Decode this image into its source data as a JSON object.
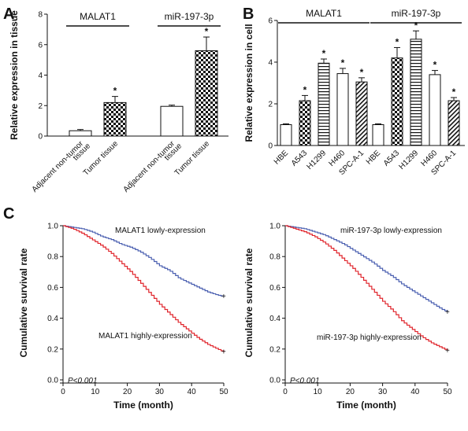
{
  "panel_letters": [
    "A",
    "B",
    "C"
  ],
  "colors": {
    "low": "#4a5fb0",
    "high": "#e0252c",
    "ink": "#111111"
  },
  "chart_data": [
    {
      "id": "A",
      "type": "bar",
      "ylabel": "Relative expression in tissue",
      "ylim": [
        0,
        8
      ],
      "yticks": [
        0,
        2,
        4,
        6,
        8
      ],
      "groups": [
        {
          "name": "MALAT1",
          "categories": [
            "Adjacent non-tumor tissue",
            "Tumor tissue"
          ],
          "category_lines": [
            [
              "Adjacent non-tumor",
              "tissue"
            ],
            [
              "Tumor tissue"
            ]
          ],
          "values": [
            0.35,
            2.2
          ],
          "errors": [
            0.08,
            0.4
          ],
          "fills": [
            "white",
            "checker"
          ],
          "significant": [
            false,
            true
          ]
        },
        {
          "name": "miR-197-3p",
          "categories": [
            "Adjacent non-tumor tissue",
            "Tumor tissue"
          ],
          "category_lines": [
            [
              "Adjacent non-tumor",
              "tissue"
            ],
            [
              "Tumor tissue"
            ]
          ],
          "values": [
            1.95,
            5.6
          ],
          "errors": [
            0.08,
            0.9
          ],
          "fills": [
            "white",
            "checker"
          ],
          "significant": [
            false,
            true
          ]
        }
      ],
      "star": "*"
    },
    {
      "id": "B",
      "type": "bar",
      "ylabel": "Relative expression in cell",
      "ylim": [
        0,
        6
      ],
      "yticks": [
        0,
        2,
        4,
        6
      ],
      "groups": [
        {
          "name": "MALAT1",
          "categories": [
            "HBE",
            "A543",
            "H1299",
            "H460",
            "SPC-A-1"
          ],
          "values": [
            1.0,
            2.15,
            3.95,
            3.45,
            3.05
          ],
          "errors": [
            0.04,
            0.25,
            0.2,
            0.25,
            0.2
          ],
          "fills": [
            "white",
            "checker",
            "hstripe",
            "white",
            "diag"
          ],
          "significant": [
            false,
            true,
            true,
            true,
            true
          ]
        },
        {
          "name": "miR-197-3p",
          "categories": [
            "HBE",
            "A543",
            "H1299",
            "H460",
            "SPC-A-1"
          ],
          "values": [
            1.0,
            4.2,
            5.1,
            3.4,
            2.15
          ],
          "errors": [
            0.04,
            0.5,
            0.4,
            0.2,
            0.15
          ],
          "fills": [
            "white",
            "checker",
            "hstripe",
            "white",
            "diag"
          ],
          "significant": [
            false,
            true,
            true,
            true,
            true
          ]
        }
      ],
      "star": "*"
    },
    {
      "id": "C1",
      "type": "line",
      "xlabel": "Time (month)",
      "ylabel": "Cumulative survival rate",
      "xlim": [
        0,
        50
      ],
      "ylim": [
        0,
        1.0
      ],
      "xticks": [
        0,
        10,
        20,
        30,
        40,
        50
      ],
      "yticks": [
        0.0,
        0.2,
        0.4,
        0.6,
        0.8,
        1.0
      ],
      "note": "P<0.001",
      "series": [
        {
          "name": "MALAT1 lowly-expression",
          "color": "#4a5fb0",
          "x": [
            0,
            3,
            6,
            9,
            12,
            15,
            18,
            21,
            24,
            27,
            30,
            33,
            36,
            39,
            42,
            45,
            48,
            50
          ],
          "y": [
            1.0,
            0.99,
            0.98,
            0.96,
            0.93,
            0.91,
            0.88,
            0.86,
            0.83,
            0.79,
            0.74,
            0.71,
            0.66,
            0.63,
            0.6,
            0.57,
            0.55,
            0.54
          ]
        },
        {
          "name": "MALAT1 highly-expression",
          "color": "#e0252c",
          "x": [
            0,
            3,
            6,
            9,
            12,
            15,
            18,
            21,
            24,
            27,
            30,
            33,
            36,
            39,
            42,
            45,
            48,
            50
          ],
          "y": [
            1.0,
            0.98,
            0.95,
            0.91,
            0.87,
            0.82,
            0.76,
            0.7,
            0.63,
            0.56,
            0.49,
            0.43,
            0.37,
            0.32,
            0.27,
            0.23,
            0.2,
            0.18
          ]
        }
      ]
    },
    {
      "id": "C2",
      "type": "line",
      "xlabel": "Time (month)",
      "ylabel": "Cumulative survival rate",
      "xlim": [
        0,
        50
      ],
      "ylim": [
        0,
        1.0
      ],
      "xticks": [
        0,
        10,
        20,
        30,
        40,
        50
      ],
      "yticks": [
        0.0,
        0.2,
        0.4,
        0.6,
        0.8,
        1.0
      ],
      "note": "P<0.001",
      "series": [
        {
          "name": "miR-197-3p lowly-expression",
          "color": "#4a5fb0",
          "x": [
            0,
            3,
            6,
            9,
            12,
            15,
            18,
            21,
            24,
            27,
            30,
            33,
            36,
            39,
            42,
            45,
            48,
            50
          ],
          "y": [
            1.0,
            0.99,
            0.98,
            0.96,
            0.94,
            0.91,
            0.88,
            0.84,
            0.8,
            0.76,
            0.71,
            0.67,
            0.62,
            0.58,
            0.54,
            0.5,
            0.46,
            0.44
          ]
        },
        {
          "name": "miR-197-3p highly-expression",
          "color": "#e0252c",
          "x": [
            0,
            3,
            6,
            9,
            12,
            15,
            18,
            21,
            24,
            27,
            30,
            33,
            36,
            39,
            42,
            45,
            48,
            50
          ],
          "y": [
            1.0,
            0.98,
            0.96,
            0.93,
            0.89,
            0.84,
            0.78,
            0.72,
            0.65,
            0.58,
            0.51,
            0.45,
            0.38,
            0.33,
            0.28,
            0.24,
            0.21,
            0.19
          ]
        }
      ]
    }
  ]
}
